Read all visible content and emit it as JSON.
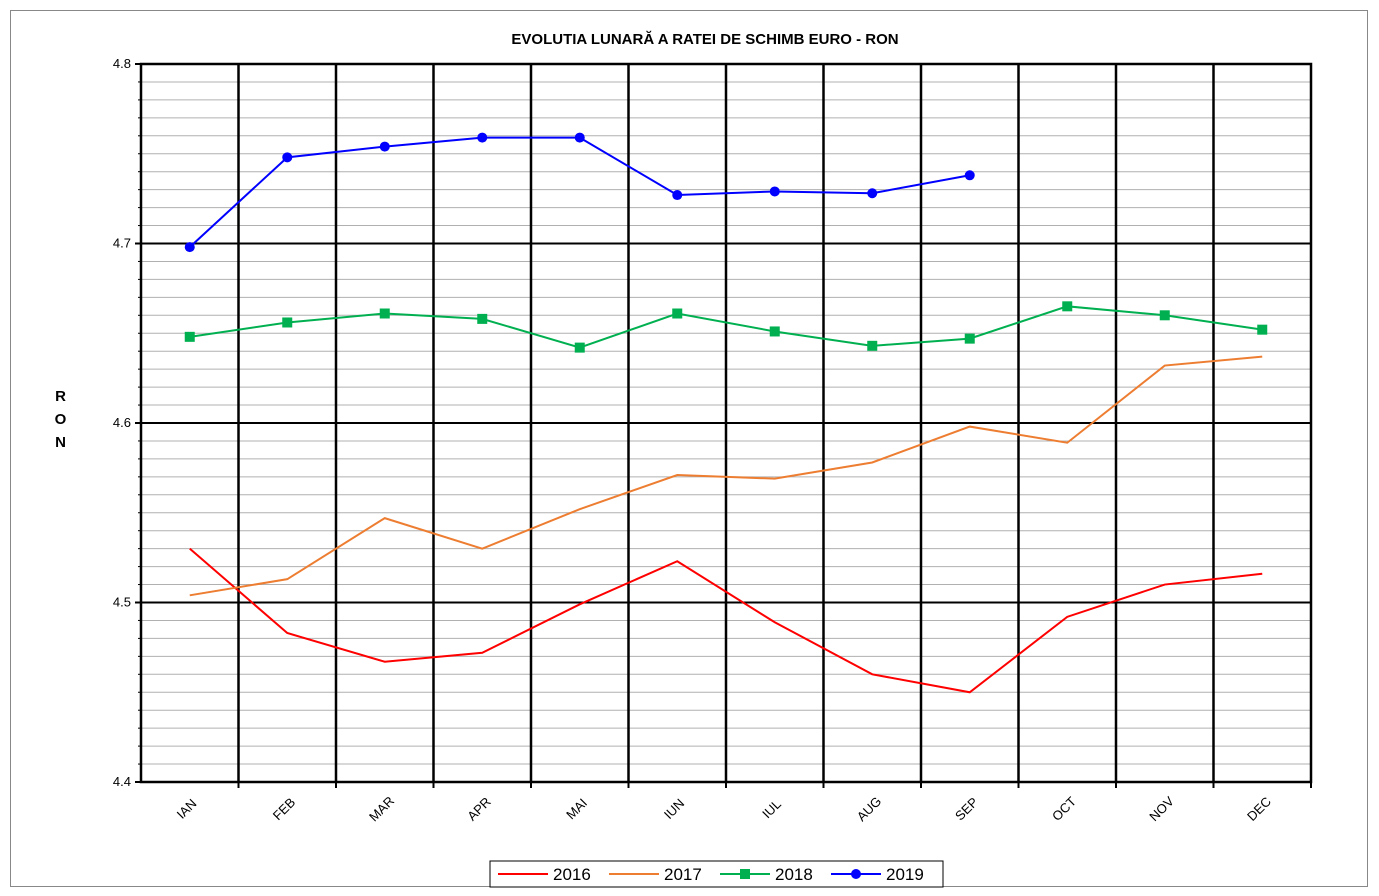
{
  "chart_data": {
    "type": "line",
    "title": "EVOLUTIA LUNARĂ A RATEI DE SCHIMB EURO - RON",
    "y_label": "RON",
    "categories": [
      "IAN",
      "FEB",
      "MAR",
      "APR",
      "MAI",
      "IUN",
      "IUL",
      "AUG",
      "SEP",
      "OCT",
      "NOV",
      "DEC"
    ],
    "series": [
      {
        "name": "2016",
        "color": "#ff0000",
        "marker": "none",
        "values": [
          4.53,
          4.483,
          4.467,
          4.472,
          4.499,
          4.523,
          4.489,
          4.46,
          4.45,
          4.492,
          4.51,
          4.516
        ]
      },
      {
        "name": "2017",
        "color": "#ed7d31",
        "marker": "none",
        "values": [
          4.504,
          4.513,
          4.547,
          4.53,
          4.552,
          4.571,
          4.569,
          4.578,
          4.598,
          4.589,
          4.632,
          4.637
        ]
      },
      {
        "name": "2018",
        "color": "#00b050",
        "marker": "square",
        "values": [
          4.648,
          4.656,
          4.661,
          4.658,
          4.642,
          4.661,
          4.651,
          4.643,
          4.647,
          4.665,
          4.66,
          4.652
        ]
      },
      {
        "name": "2019",
        "color": "#0000ff",
        "marker": "circle",
        "values": [
          4.698,
          4.748,
          4.754,
          4.759,
          4.759,
          4.727,
          4.729,
          4.728,
          4.738,
          null,
          null,
          null
        ]
      }
    ],
    "ylim": [
      4.4,
      4.8
    ],
    "yticks": [
      4.4,
      4.5,
      4.6,
      4.7,
      4.8
    ],
    "grid": true,
    "minor_grid_per_tick": 10,
    "legend": "bottom"
  }
}
